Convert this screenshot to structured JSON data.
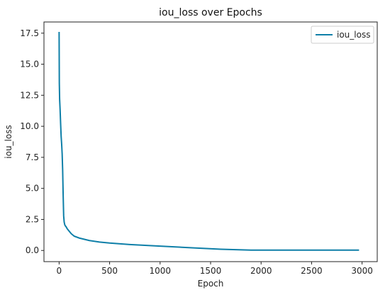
{
  "chart_data": {
    "type": "line",
    "title": "iou_loss over Epochs",
    "xlabel": "Epoch",
    "ylabel": "iou_loss",
    "xlim": [
      -150,
      3150
    ],
    "ylim": [
      -0.9,
      18.4
    ],
    "xticks": [
      0,
      500,
      1000,
      1500,
      2000,
      2500,
      3000
    ],
    "yticks": [
      0.0,
      2.5,
      5.0,
      7.5,
      10.0,
      12.5,
      15.0,
      17.5
    ],
    "xtick_labels": [
      "0",
      "500",
      "1000",
      "1500",
      "2000",
      "2500",
      "3000"
    ],
    "ytick_labels": [
      "0.0",
      "2.5",
      "5.0",
      "7.5",
      "10.0",
      "12.5",
      "15.0",
      "17.5"
    ],
    "grid": false,
    "legend_position": "top-right",
    "colors": {
      "series": "#0e7fa8",
      "axes": "#222222"
    },
    "series": [
      {
        "name": "iou_loss",
        "x": [
          0,
          2,
          5,
          10,
          15,
          20,
          25,
          30,
          35,
          40,
          45,
          50,
          55,
          60,
          70,
          80,
          100,
          120,
          150,
          200,
          250,
          300,
          400,
          500,
          700,
          1000,
          1300,
          1600,
          1900,
          2000,
          2500,
          2970
        ],
        "y": [
          17.6,
          13.5,
          12.2,
          11.3,
          10.2,
          9.2,
          8.6,
          7.8,
          6.5,
          4.5,
          2.8,
          2.3,
          2.1,
          2.0,
          1.9,
          1.75,
          1.55,
          1.35,
          1.15,
          1.0,
          0.9,
          0.8,
          0.68,
          0.6,
          0.48,
          0.35,
          0.22,
          0.1,
          0.03,
          0.03,
          0.03,
          0.03
        ]
      }
    ]
  }
}
